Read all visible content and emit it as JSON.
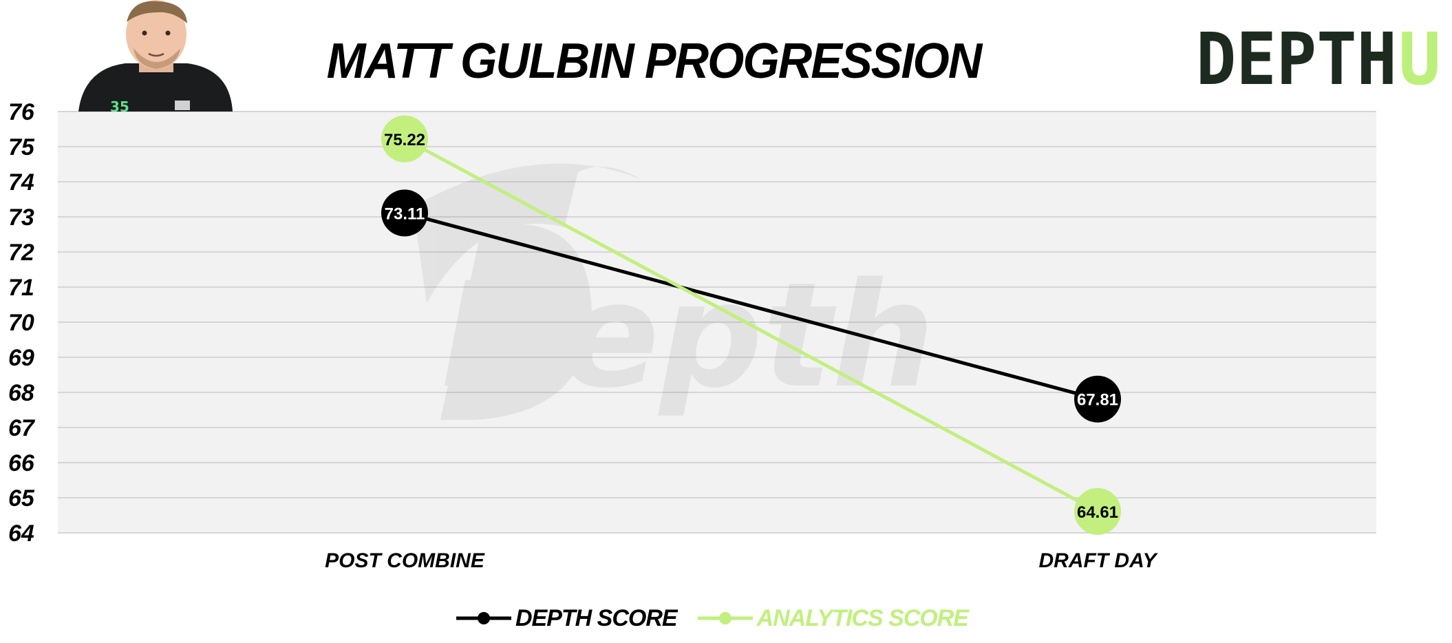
{
  "colors": {
    "depth": "#000000",
    "analytics": "#c2ef7e",
    "plot_bg": "#f2f2f2",
    "grid": "#d6d6d6",
    "logo_dark": "#1d2a1f",
    "logo_accent": "#bdf07a"
  },
  "header": {
    "title": "MATT GULBIN PROGRESSION",
    "logo": {
      "text": "DEPTH",
      "accent": "U"
    }
  },
  "legend": [
    {
      "label": "DEPTH SCORE",
      "color": "#000000"
    },
    {
      "label": "ANALYTICS SCORE",
      "color": "#c2ef7e"
    }
  ],
  "chart_data": {
    "type": "line",
    "title": "MATT GULBIN PROGRESSION",
    "categories": [
      "POST COMBINE",
      "DRAFT DAY"
    ],
    "series": [
      {
        "name": "DEPTH SCORE",
        "values": [
          73.11,
          67.81
        ],
        "labels": [
          "73.11",
          "67.81"
        ],
        "color": "#000000",
        "label_color": "#ffffff"
      },
      {
        "name": "ANALYTICS SCORE",
        "values": [
          75.22,
          64.61
        ],
        "labels": [
          "75.22",
          "64.61"
        ],
        "color": "#c2ef7e",
        "label_color": "#000000"
      }
    ],
    "y_ticks": [
      "64",
      "65",
      "66",
      "67",
      "68",
      "69",
      "70",
      "71",
      "72",
      "73",
      "74",
      "75",
      "76"
    ],
    "ylim": [
      64,
      76
    ],
    "grid": true,
    "legend_position": "bottom",
    "watermark": "Depth"
  }
}
